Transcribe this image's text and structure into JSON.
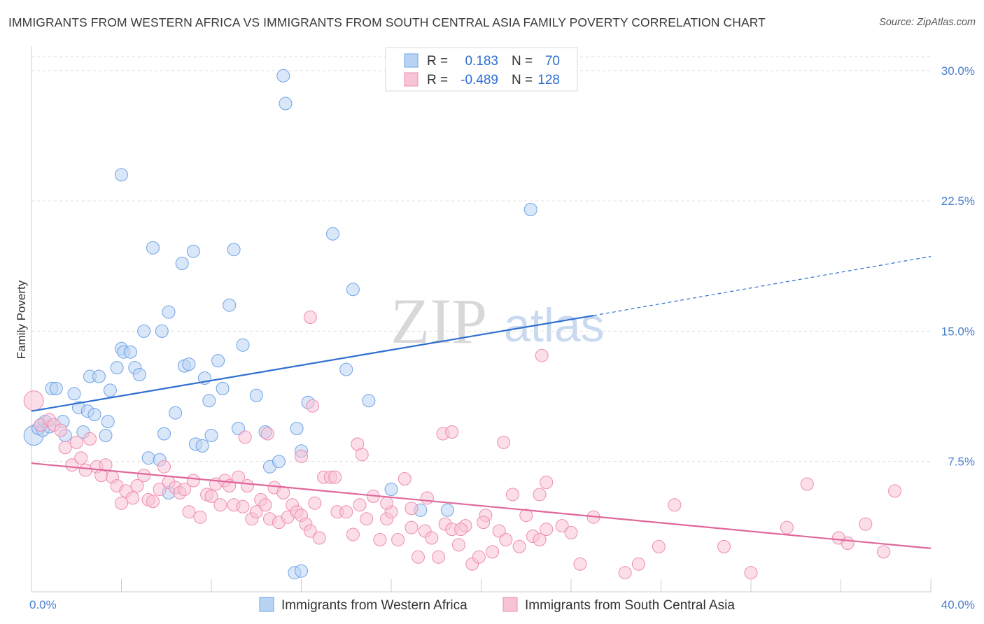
{
  "title": "IMMIGRANTS FROM WESTERN AFRICA VS IMMIGRANTS FROM SOUTH CENTRAL ASIA FAMILY POVERTY CORRELATION CHART",
  "source": "Source: ZipAtlas.com",
  "watermark": {
    "zip": "ZIP",
    "atlas": "atlas"
  },
  "legend": {
    "rows": [
      {
        "r_label": "R =",
        "r_value": "0.183",
        "n_label": "N =",
        "n_value": "70"
      },
      {
        "r_label": "R =",
        "r_value": "-0.489",
        "n_label": "N =",
        "n_value": "128"
      }
    ]
  },
  "chart_data": {
    "type": "scatter",
    "ylabel": "Family Poverty",
    "xlim": [
      0,
      40
    ],
    "ylim": [
      0,
      31
    ],
    "x_tick_labels": [
      "0.0%",
      "40.0%"
    ],
    "y_ticks": [
      7.5,
      15.0,
      22.5,
      30.0
    ],
    "y_tick_labels": [
      "7.5%",
      "15.0%",
      "22.5%",
      "30.0%"
    ],
    "grid": "horizontal dashed",
    "legend_position": "top-center",
    "series": [
      {
        "name": "Immigrants from Western Africa",
        "color": "#6fa3e8",
        "fill": "#b9d3f3",
        "trend": {
          "x0": 0,
          "y0": 10.4,
          "x1": 25,
          "y1": 15.9,
          "dashed_to_x": 40,
          "dashed_to_y": 19.3
        },
        "points": [
          [
            0.1,
            9.0
          ],
          [
            0.3,
            9.4
          ],
          [
            0.4,
            9.6
          ],
          [
            0.5,
            9.3
          ],
          [
            0.6,
            9.8
          ],
          [
            0.8,
            9.5
          ],
          [
            0.9,
            11.7
          ],
          [
            1.1,
            11.7
          ],
          [
            1.4,
            9.8
          ],
          [
            1.5,
            9.0
          ],
          [
            1.9,
            11.4
          ],
          [
            2.1,
            10.6
          ],
          [
            2.3,
            9.2
          ],
          [
            2.5,
            10.4
          ],
          [
            2.6,
            12.4
          ],
          [
            2.8,
            10.2
          ],
          [
            3.0,
            12.4
          ],
          [
            3.3,
            9.0
          ],
          [
            3.4,
            9.8
          ],
          [
            3.5,
            11.6
          ],
          [
            3.8,
            12.9
          ],
          [
            4.0,
            14.0
          ],
          [
            4.1,
            13.8
          ],
          [
            4.4,
            13.8
          ],
          [
            4.6,
            12.9
          ],
          [
            4.8,
            12.5
          ],
          [
            5.2,
            7.7
          ],
          [
            5.7,
            7.6
          ],
          [
            5.9,
            9.1
          ],
          [
            6.1,
            5.7
          ],
          [
            6.4,
            10.3
          ],
          [
            6.8,
            13.0
          ],
          [
            7.0,
            13.1
          ],
          [
            7.3,
            8.5
          ],
          [
            7.6,
            8.4
          ],
          [
            7.7,
            12.3
          ],
          [
            7.9,
            11.0
          ],
          [
            8.0,
            9.0
          ],
          [
            8.3,
            13.3
          ],
          [
            8.5,
            11.7
          ],
          [
            9.2,
            9.4
          ],
          [
            9.4,
            14.2
          ],
          [
            10.0,
            11.3
          ],
          [
            10.4,
            9.2
          ],
          [
            10.6,
            7.2
          ],
          [
            11.0,
            7.5
          ],
          [
            11.8,
            9.4
          ],
          [
            12.0,
            8.1
          ],
          [
            12.3,
            10.9
          ],
          [
            14.0,
            12.8
          ],
          [
            15.0,
            11.0
          ],
          [
            17.3,
            4.7
          ],
          [
            18.5,
            4.7
          ],
          [
            4.0,
            24.0
          ],
          [
            5.4,
            19.8
          ],
          [
            6.1,
            16.1
          ],
          [
            6.7,
            18.9
          ],
          [
            7.2,
            19.6
          ],
          [
            8.8,
            16.5
          ],
          [
            9.0,
            19.7
          ],
          [
            11.2,
            29.7
          ],
          [
            11.3,
            28.1
          ],
          [
            13.4,
            20.6
          ],
          [
            14.3,
            17.4
          ],
          [
            5.8,
            15.0
          ],
          [
            5.0,
            15.0
          ],
          [
            22.2,
            22.0
          ],
          [
            11.7,
            1.1
          ],
          [
            12.0,
            1.2
          ],
          [
            16.0,
            5.9
          ]
        ]
      },
      {
        "name": "Immigrants from South Central Asia",
        "color": "#ee8db0",
        "fill": "#f7c3d6",
        "trend": {
          "x0": 0,
          "y0": 7.4,
          "x1": 40,
          "y1": 2.5
        },
        "points": [
          [
            0.1,
            11.0
          ],
          [
            0.4,
            9.6
          ],
          [
            0.8,
            9.9
          ],
          [
            1.0,
            9.6
          ],
          [
            1.3,
            9.3
          ],
          [
            1.5,
            8.3
          ],
          [
            1.8,
            7.3
          ],
          [
            2.0,
            8.6
          ],
          [
            2.2,
            7.7
          ],
          [
            2.4,
            7.0
          ],
          [
            2.6,
            8.8
          ],
          [
            2.9,
            7.2
          ],
          [
            3.1,
            6.7
          ],
          [
            3.3,
            7.3
          ],
          [
            3.6,
            6.6
          ],
          [
            3.8,
            6.1
          ],
          [
            4.0,
            5.1
          ],
          [
            4.2,
            5.8
          ],
          [
            4.5,
            5.4
          ],
          [
            4.7,
            6.1
          ],
          [
            5.0,
            6.7
          ],
          [
            5.2,
            5.3
          ],
          [
            5.4,
            5.2
          ],
          [
            5.7,
            5.9
          ],
          [
            5.9,
            7.2
          ],
          [
            6.1,
            6.3
          ],
          [
            6.4,
            6.0
          ],
          [
            6.6,
            5.7
          ],
          [
            6.8,
            5.9
          ],
          [
            7.0,
            4.6
          ],
          [
            7.2,
            6.4
          ],
          [
            7.5,
            4.3
          ],
          [
            7.8,
            5.6
          ],
          [
            8.0,
            5.5
          ],
          [
            8.2,
            6.2
          ],
          [
            8.4,
            5.0
          ],
          [
            8.6,
            6.4
          ],
          [
            8.8,
            6.1
          ],
          [
            9.0,
            5.0
          ],
          [
            9.2,
            6.6
          ],
          [
            9.4,
            4.9
          ],
          [
            9.6,
            6.1
          ],
          [
            9.8,
            4.2
          ],
          [
            10.0,
            4.6
          ],
          [
            10.2,
            5.3
          ],
          [
            10.4,
            5.0
          ],
          [
            10.6,
            4.2
          ],
          [
            10.8,
            6.0
          ],
          [
            11.0,
            4.0
          ],
          [
            11.2,
            5.7
          ],
          [
            11.4,
            4.3
          ],
          [
            11.6,
            5.0
          ],
          [
            11.8,
            4.6
          ],
          [
            12.0,
            4.4
          ],
          [
            12.2,
            3.9
          ],
          [
            12.4,
            3.5
          ],
          [
            12.6,
            5.1
          ],
          [
            12.8,
            3.1
          ],
          [
            13.0,
            6.6
          ],
          [
            13.3,
            6.6
          ],
          [
            13.6,
            4.6
          ],
          [
            14.0,
            4.6
          ],
          [
            14.3,
            3.3
          ],
          [
            14.6,
            5.0
          ],
          [
            14.9,
            4.2
          ],
          [
            15.2,
            5.5
          ],
          [
            15.5,
            3.0
          ],
          [
            15.8,
            4.2
          ],
          [
            16.0,
            4.6
          ],
          [
            16.3,
            3.0
          ],
          [
            16.6,
            6.5
          ],
          [
            16.9,
            4.8
          ],
          [
            17.2,
            2.0
          ],
          [
            17.5,
            3.5
          ],
          [
            17.8,
            3.1
          ],
          [
            18.1,
            2.0
          ],
          [
            18.4,
            3.9
          ],
          [
            18.7,
            3.6
          ],
          [
            19.0,
            2.7
          ],
          [
            19.3,
            3.8
          ],
          [
            19.6,
            1.6
          ],
          [
            19.9,
            2.0
          ],
          [
            20.2,
            4.4
          ],
          [
            20.5,
            2.3
          ],
          [
            20.8,
            3.5
          ],
          [
            21.1,
            3.0
          ],
          [
            21.4,
            5.6
          ],
          [
            21.7,
            2.6
          ],
          [
            22.0,
            4.4
          ],
          [
            22.3,
            3.2
          ],
          [
            22.6,
            3.0
          ],
          [
            22.9,
            3.6
          ],
          [
            12.5,
            10.7
          ],
          [
            12.0,
            7.8
          ],
          [
            13.5,
            6.6
          ],
          [
            14.5,
            8.5
          ],
          [
            14.7,
            7.9
          ],
          [
            15.8,
            5.1
          ],
          [
            16.9,
            3.7
          ],
          [
            17.6,
            5.4
          ],
          [
            18.3,
            9.1
          ],
          [
            18.7,
            9.2
          ],
          [
            19.1,
            3.6
          ],
          [
            20.1,
            4.0
          ],
          [
            21.0,
            8.6
          ],
          [
            22.6,
            5.6
          ],
          [
            22.9,
            6.3
          ],
          [
            23.6,
            3.8
          ],
          [
            24.0,
            3.4
          ],
          [
            24.4,
            1.6
          ],
          [
            25.0,
            4.3
          ],
          [
            26.4,
            1.1
          ],
          [
            27.0,
            1.6
          ],
          [
            27.9,
            2.6
          ],
          [
            28.6,
            5.0
          ],
          [
            30.8,
            2.6
          ],
          [
            32.0,
            1.1
          ],
          [
            33.6,
            3.7
          ],
          [
            34.5,
            6.2
          ],
          [
            35.9,
            3.1
          ],
          [
            36.3,
            2.8
          ],
          [
            37.1,
            3.9
          ],
          [
            37.9,
            2.3
          ],
          [
            38.4,
            5.8
          ],
          [
            9.5,
            8.9
          ],
          [
            10.5,
            9.1
          ],
          [
            12.4,
            15.8
          ],
          [
            22.7,
            13.6
          ]
        ]
      }
    ]
  },
  "bottom_legend": [
    {
      "label": "Immigrants from Western Africa"
    },
    {
      "label": "Immigrants from South Central Asia"
    }
  ]
}
